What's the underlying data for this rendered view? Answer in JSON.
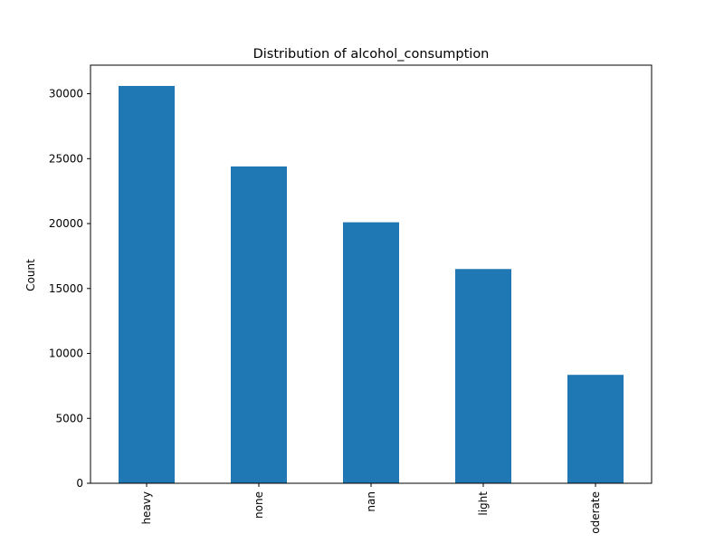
{
  "chart_data": {
    "type": "bar",
    "title": "Distribution of alcohol_consumption",
    "xlabel": "",
    "ylabel": "Count",
    "categories": [
      "heavy",
      "none",
      "nan",
      "light",
      "oderate"
    ],
    "values": [
      30600,
      24400,
      20100,
      16500,
      8350
    ],
    "ylim": [
      0,
      32200
    ],
    "yticks": [
      0,
      5000,
      10000,
      15000,
      20000,
      25000,
      30000
    ],
    "bar_color": "#1f77b4",
    "grid": false,
    "legend": "none"
  }
}
